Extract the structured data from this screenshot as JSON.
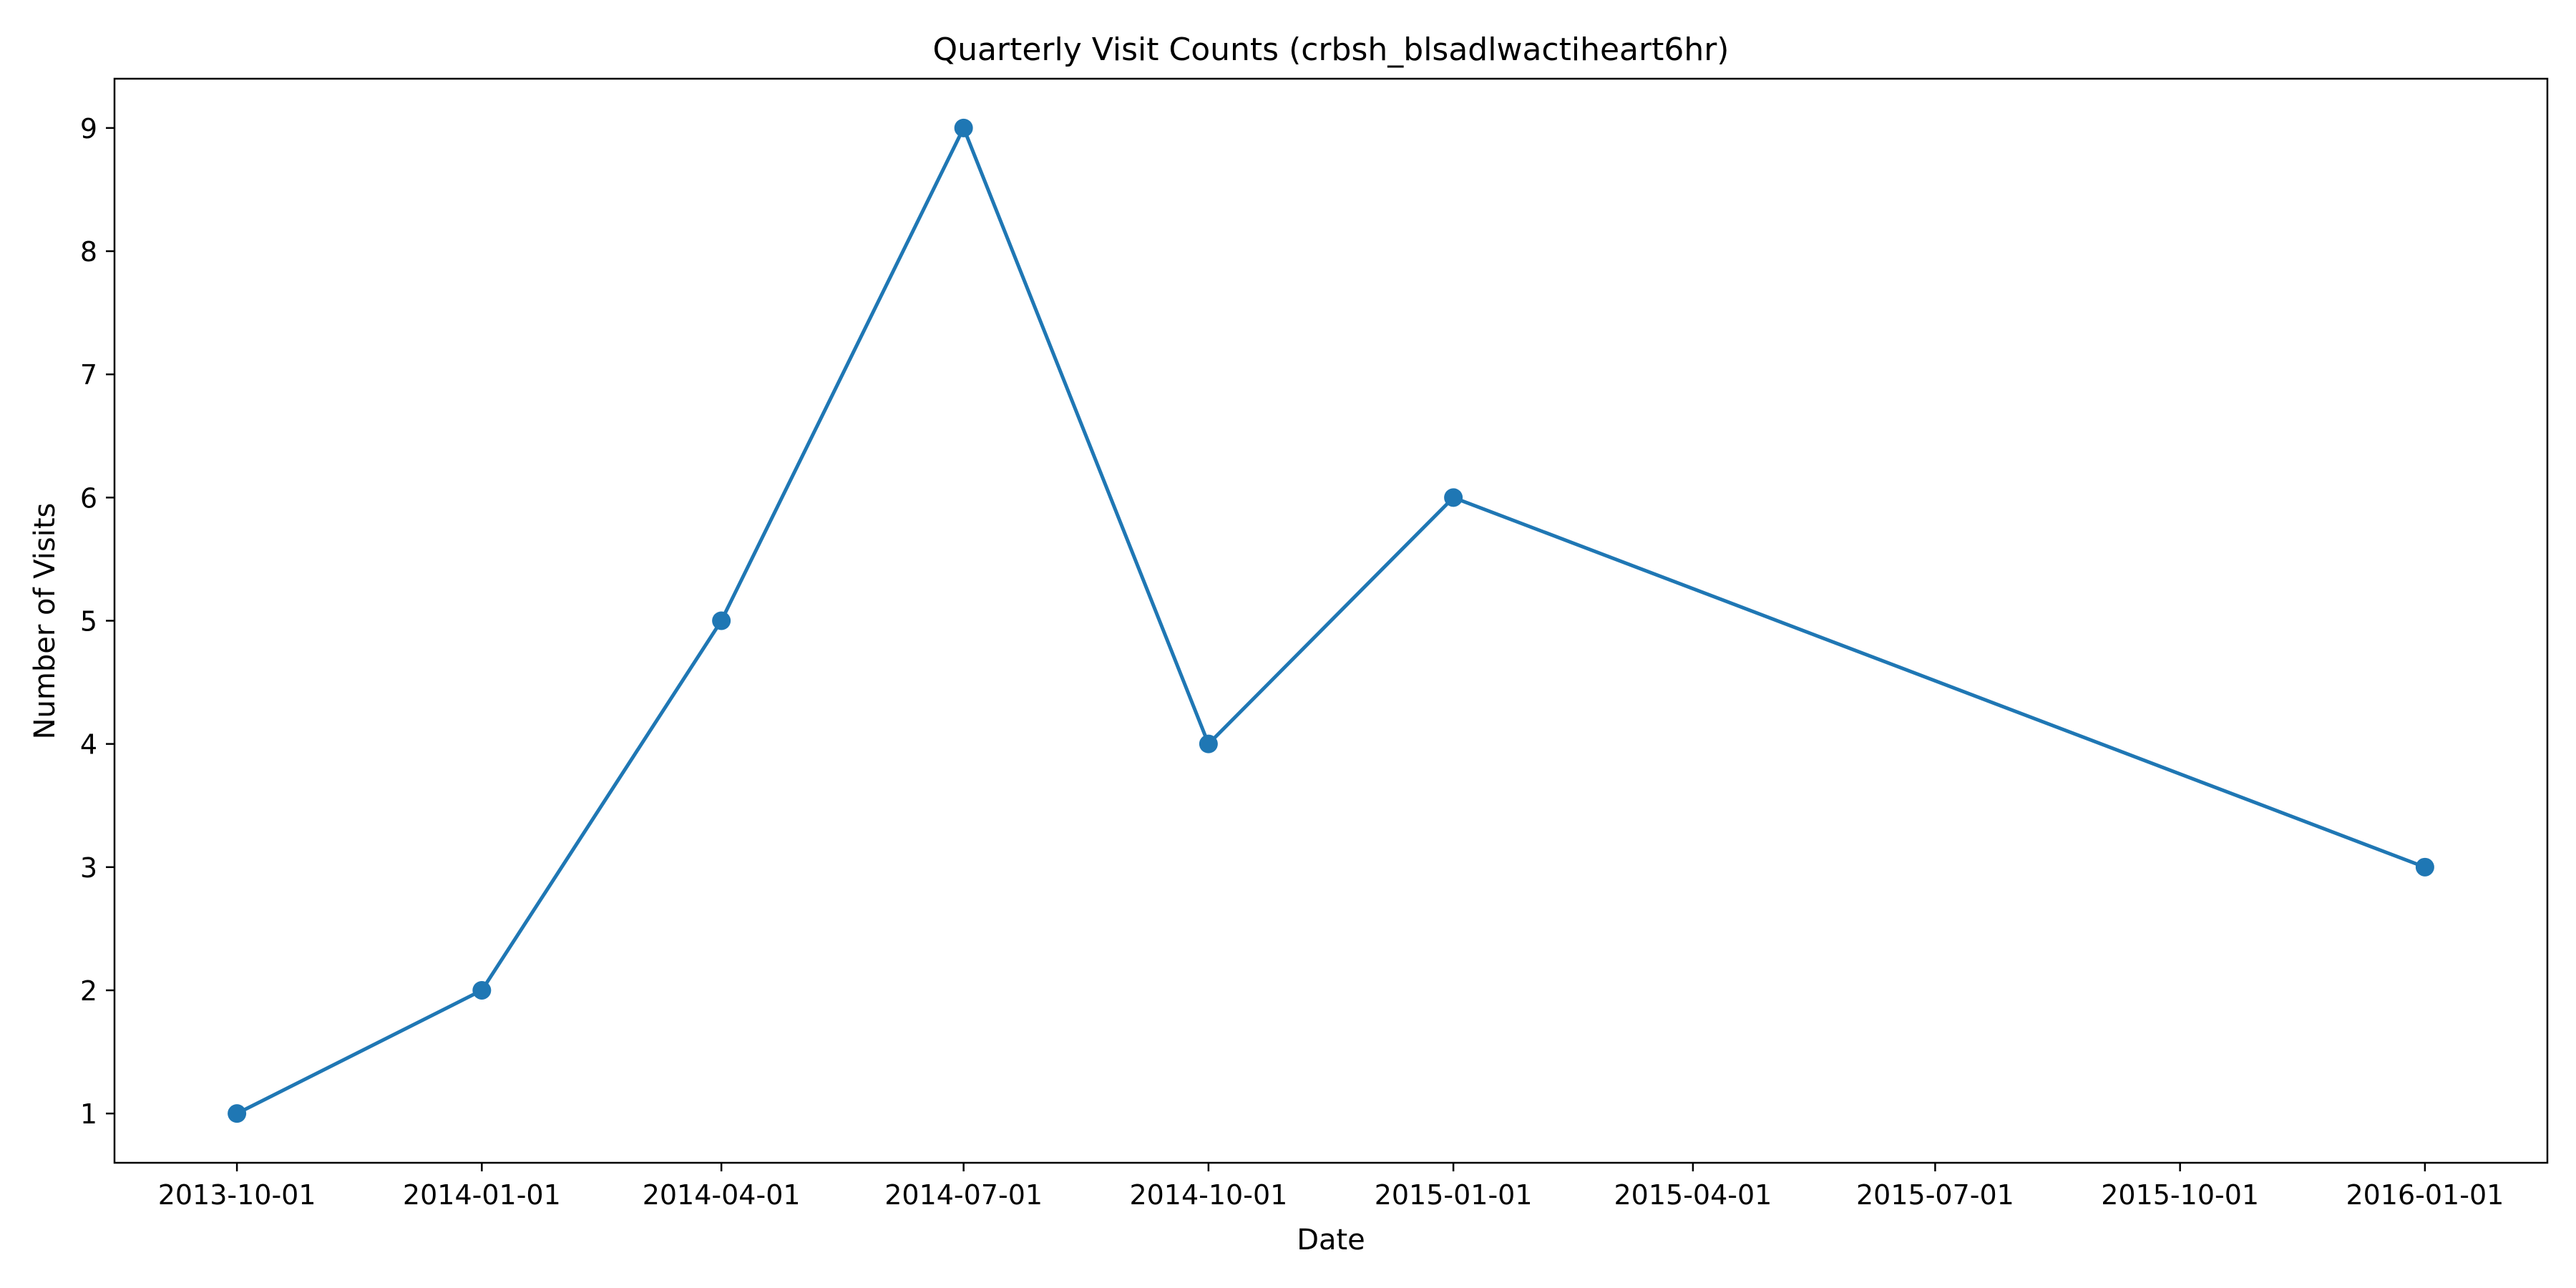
{
  "chart_data": {
    "type": "line",
    "title": "Quarterly Visit Counts (crbsh_blsadlwactiheart6hr)",
    "xlabel": "Date",
    "ylabel": "Number of Visits",
    "x_axis_kind": "date",
    "x_tick_labels": [
      "2013-10-01",
      "2014-01-01",
      "2014-04-01",
      "2014-07-01",
      "2014-10-01",
      "2015-01-01",
      "2015-04-01",
      "2015-07-01",
      "2015-10-01",
      "2016-01-01"
    ],
    "y_ticks": [
      1,
      2,
      3,
      4,
      5,
      6,
      7,
      8,
      9
    ],
    "ylim": [
      0.6,
      9.4
    ],
    "xlim": [
      "2013-08-16",
      "2016-02-16"
    ],
    "grid": false,
    "legend": "none",
    "series": [
      {
        "color": "#1f77b4",
        "marker": "circle",
        "points": [
          {
            "x": "2013-10-01",
            "y": 1
          },
          {
            "x": "2014-01-01",
            "y": 2
          },
          {
            "x": "2014-04-01",
            "y": 5
          },
          {
            "x": "2014-07-01",
            "y": 9
          },
          {
            "x": "2014-10-01",
            "y": 4
          },
          {
            "x": "2015-01-01",
            "y": 6
          },
          {
            "x": "2016-01-01",
            "y": 3
          }
        ]
      }
    ]
  }
}
